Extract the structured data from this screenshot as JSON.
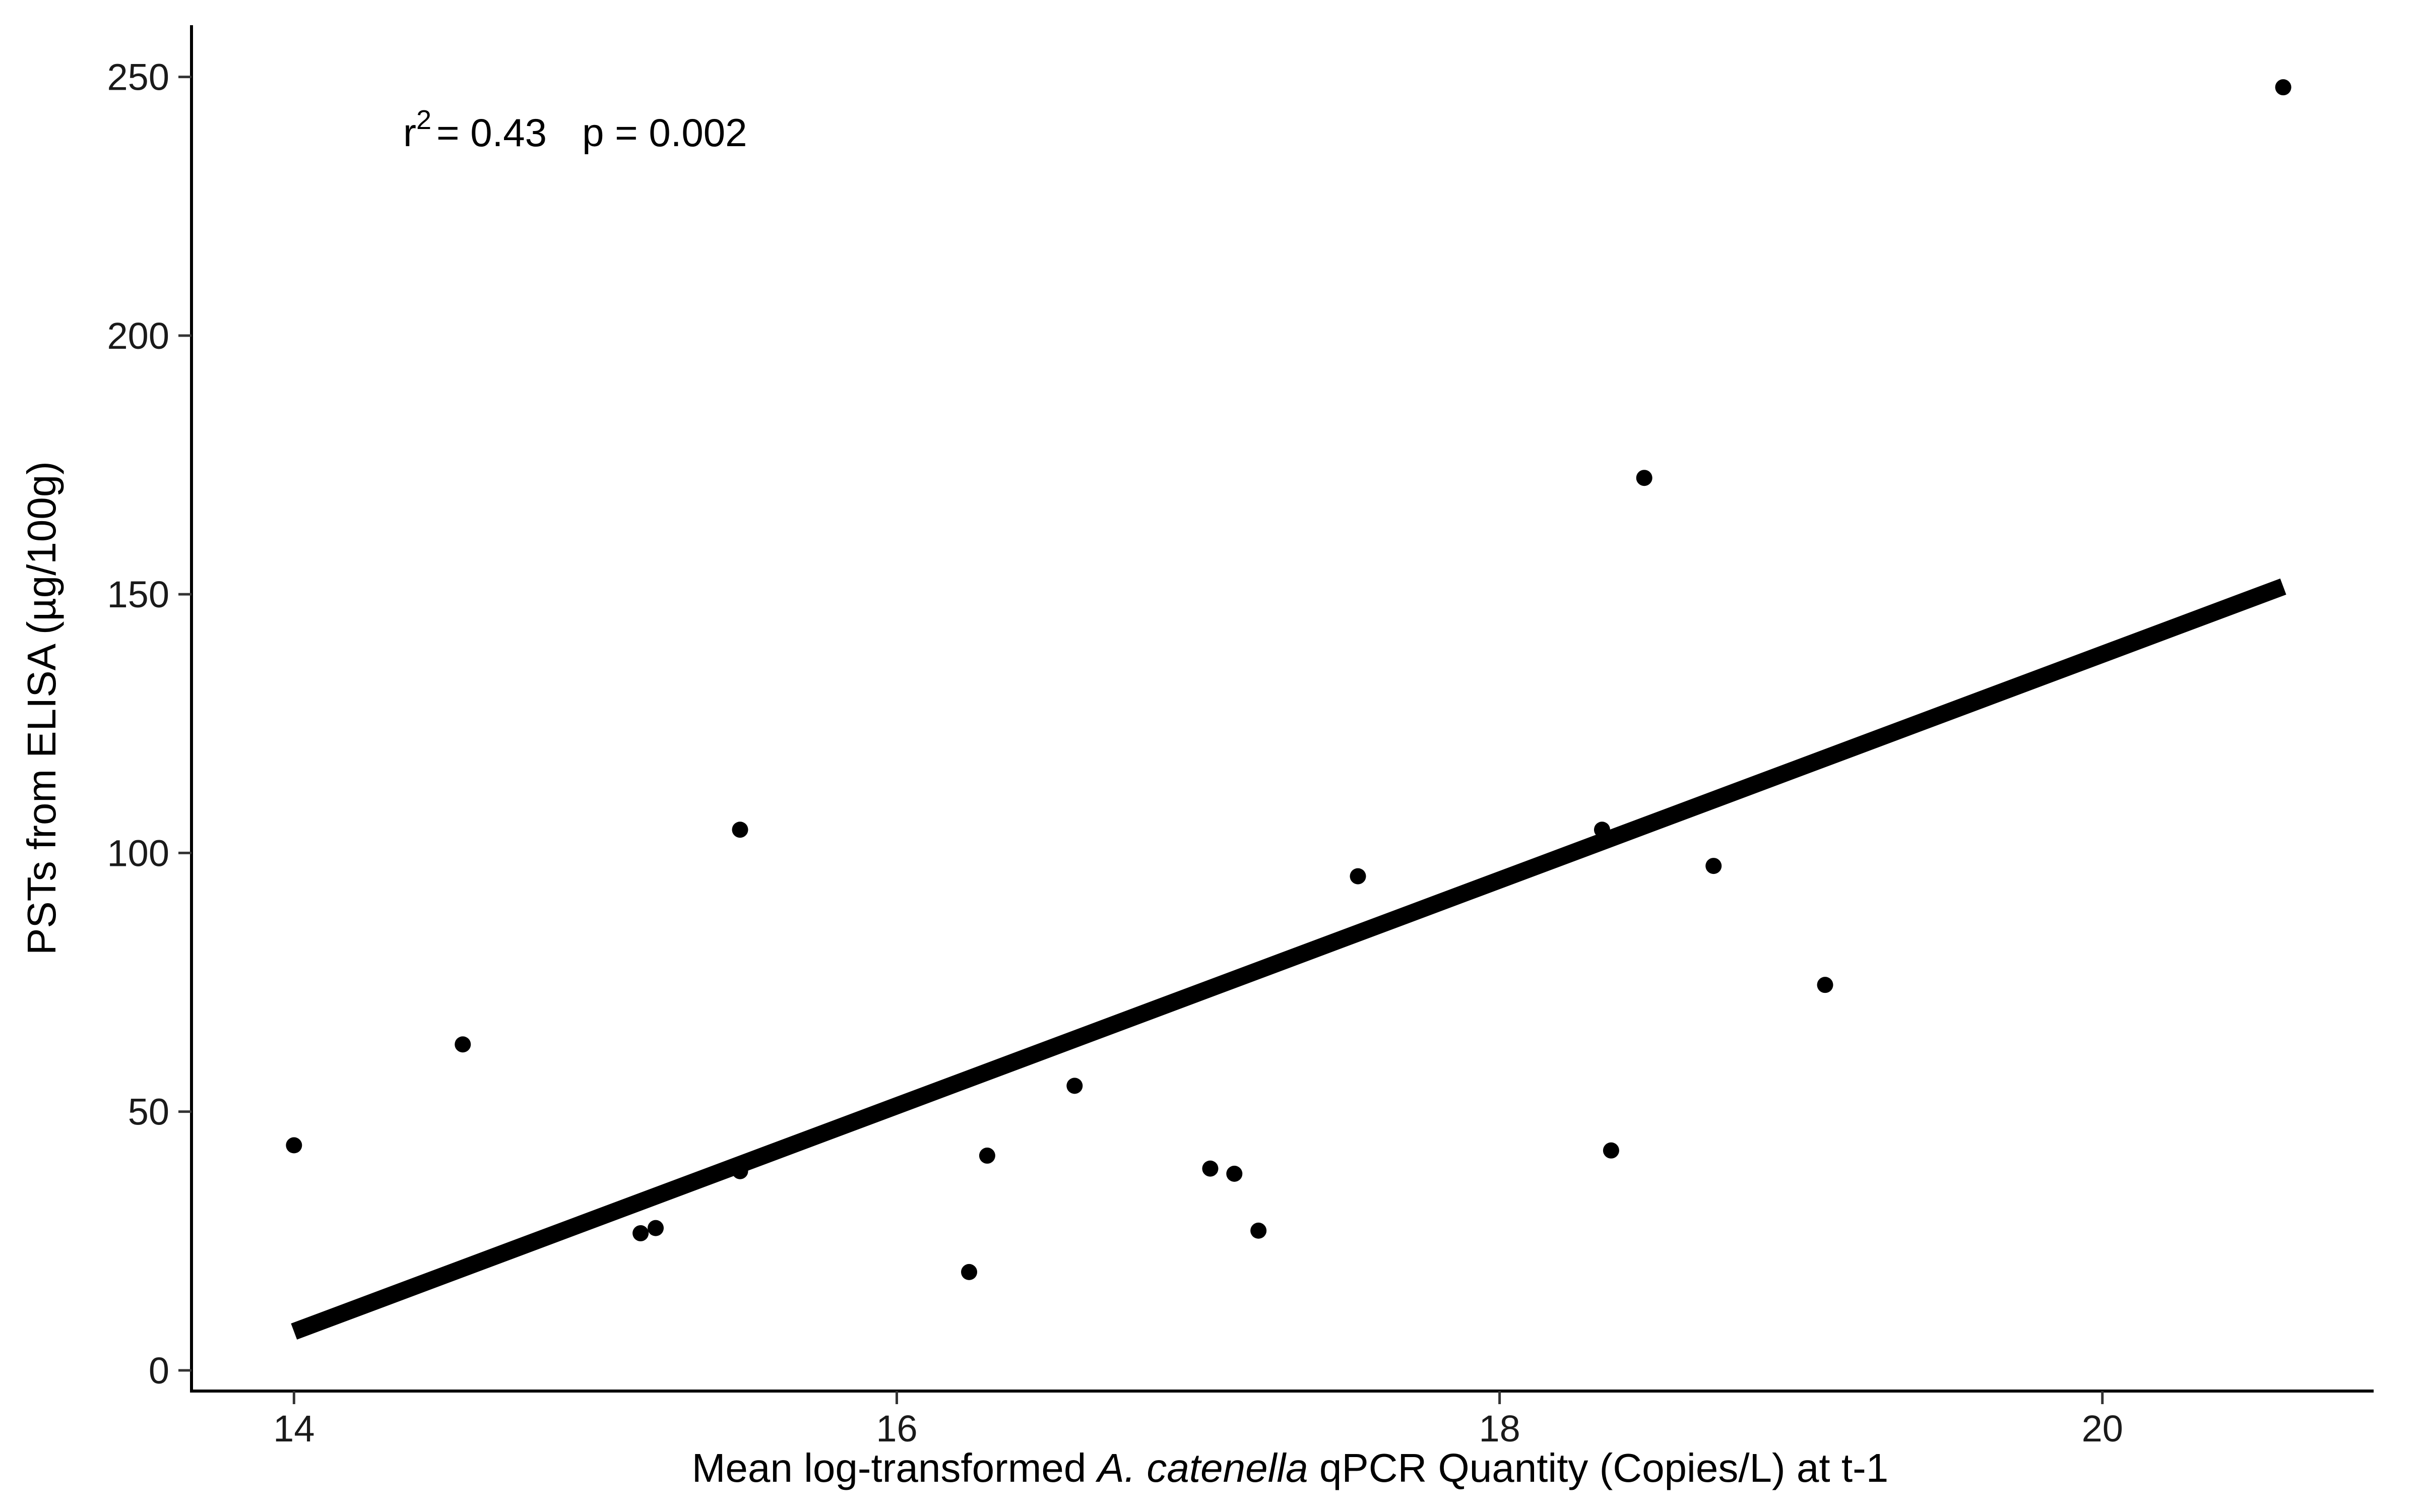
{
  "chart_data": {
    "type": "scatter",
    "xlabel": {
      "prefix": "Mean log-transformed ",
      "italic": "A. catenella",
      "suffix": " qPCR Quantity (Copies/L) at t-1"
    },
    "ylabel": "PSTs from ELISA (µg/100g)",
    "annotation": {
      "r_label": "r",
      "r_exponent": "2",
      "r_value": "= 0.43",
      "p_label": "p = 0.002"
    },
    "xlim": [
      13.66,
      20.9
    ],
    "ylim": [
      -4,
      260
    ],
    "xticks": [
      14,
      16,
      18,
      20
    ],
    "yticks": [
      0,
      50,
      100,
      150,
      200,
      250
    ],
    "points": [
      {
        "x": 14.0,
        "y": 43.5
      },
      {
        "x": 14.56,
        "y": 63.0
      },
      {
        "x": 15.15,
        "y": 26.5
      },
      {
        "x": 15.2,
        "y": 27.5
      },
      {
        "x": 15.48,
        "y": 104.5
      },
      {
        "x": 15.48,
        "y": 38.5
      },
      {
        "x": 16.24,
        "y": 19.0
      },
      {
        "x": 16.3,
        "y": 41.5
      },
      {
        "x": 16.59,
        "y": 55.0
      },
      {
        "x": 17.04,
        "y": 39.0
      },
      {
        "x": 17.12,
        "y": 38.0
      },
      {
        "x": 17.2,
        "y": 27.0
      },
      {
        "x": 17.53,
        "y": 95.5
      },
      {
        "x": 18.34,
        "y": 104.5
      },
      {
        "x": 18.37,
        "y": 42.5
      },
      {
        "x": 18.48,
        "y": 172.5
      },
      {
        "x": 18.71,
        "y": 97.5
      },
      {
        "x": 19.08,
        "y": 74.5
      },
      {
        "x": 20.6,
        "y": 248.0
      }
    ],
    "fit_line": {
      "x": [
        14.0,
        20.6
      ],
      "y": [
        7.5,
        151.5
      ]
    },
    "grid": false,
    "legend": "none"
  }
}
